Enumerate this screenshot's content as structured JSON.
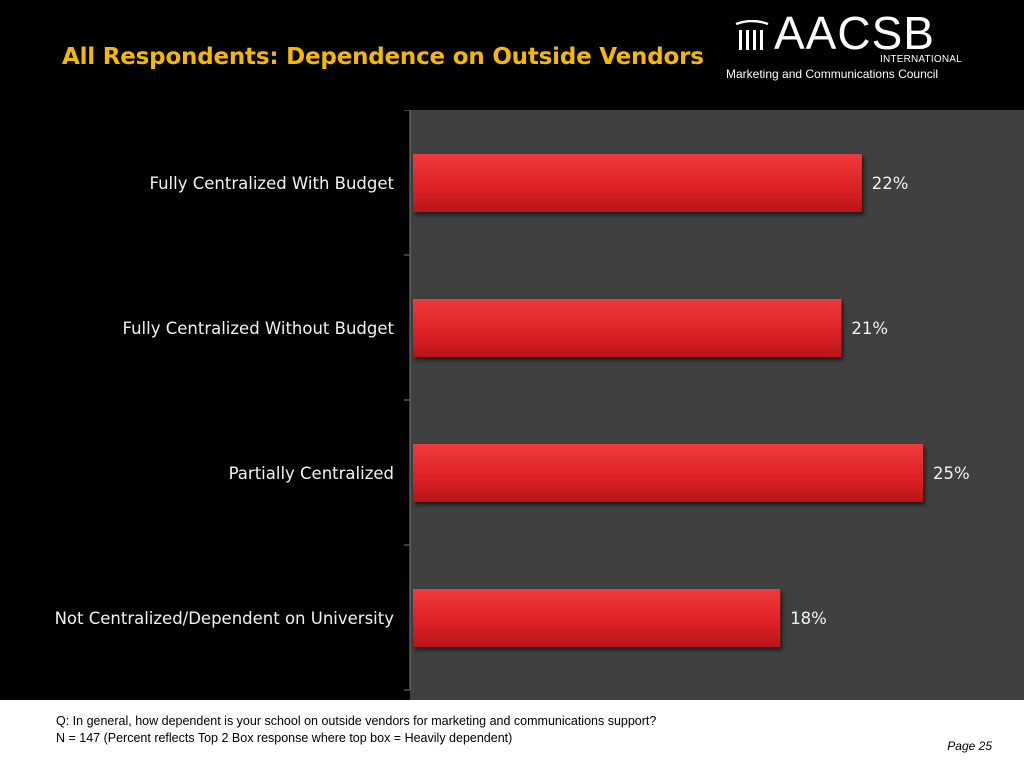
{
  "header": {
    "title": "All Respondents: Dependence on Outside Vendors"
  },
  "logo": {
    "wordmark": "AACSB",
    "international": "INTERNATIONAL",
    "council": "Marketing and Communications Council"
  },
  "footer": {
    "question": "Q: In general, how dependent is your school on outside vendors for marketing and communications support?",
    "note": "N = 147 (Percent reflects Top 2 Box response where top box = Heavily dependent)",
    "page": "Page 25"
  },
  "colors": {
    "title": "#f5b800",
    "bar": "#e3272a",
    "plot_background": "#404040"
  },
  "chart_data": {
    "type": "bar",
    "orientation": "horizontal",
    "categories": [
      "Fully Centralized With Budget",
      "Fully Centralized Without Budget",
      "Partially Centralized",
      "Not Centralized/Dependent on University"
    ],
    "values": [
      22,
      21,
      25,
      18
    ],
    "value_labels": [
      "22%",
      "21%",
      "25%",
      "18%"
    ],
    "unit": "%",
    "xlim": [
      0,
      30
    ],
    "grid": false,
    "legend": "none"
  }
}
